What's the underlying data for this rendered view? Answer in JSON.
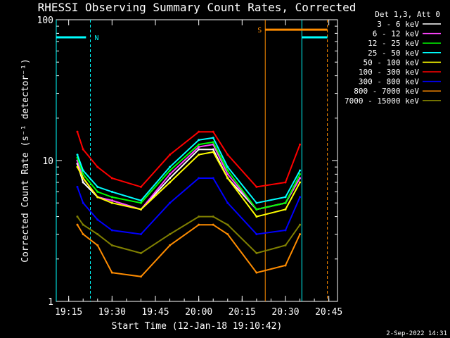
{
  "chart_data": {
    "type": "line",
    "title": "RHESSI Observing Summary Count Rates, Corrected",
    "xlabel": "Start Time (12-Jan-18 19:10:42)",
    "ylabel": "Corrected Count Rate (s⁻¹ detector⁻¹)",
    "yscale": "log",
    "ylim": [
      1,
      100
    ],
    "xlim": [
      "19:10:42",
      "20:48:00"
    ],
    "x_ticks": [
      "19:15",
      "19:30",
      "19:45",
      "20:00",
      "20:15",
      "20:30",
      "20:45"
    ],
    "y_ticks": [
      "1",
      "10",
      "100"
    ],
    "legend_title": "Det 1,3, Att 0",
    "legend_position": "right",
    "timestamp": "2-Sep-2022 14:31",
    "flag_markers": [
      {
        "label": "N",
        "color": "#00ffff",
        "line_time": "19:22:30",
        "bar_from": "19:10:42",
        "bar_to": "19:21:00",
        "value": 75
      },
      {
        "label": "S",
        "color": "#ff8c00",
        "line_time": "20:23:00",
        "bar_from": "20:23:00",
        "bar_to": "20:44:30",
        "value": 85
      },
      {
        "label": "",
        "color": "#00ffff",
        "line_time": "20:44:00",
        "bar_from": "20:35:40",
        "bar_to": "20:44:30",
        "value": 75
      }
    ],
    "boundary_lines": [
      {
        "time": "19:10:42",
        "color": "#00ffff",
        "style": "solid"
      },
      {
        "time": "19:22:30",
        "color": "#00ffff",
        "style": "dashed"
      },
      {
        "time": "20:23:00",
        "color": "#ff8c00",
        "style": "solid"
      },
      {
        "time": "20:35:40",
        "color": "#00ffff",
        "style": "solid"
      },
      {
        "time": "20:44:30",
        "color": "#ff8c00",
        "style": "dashed"
      }
    ],
    "series": [
      {
        "name": "3 - 6 keV",
        "color": "#ffffff",
        "times": [
          "19:18",
          "19:20",
          "19:25",
          "19:30",
          "19:40",
          "19:50",
          "20:00",
          "20:05",
          "20:10",
          "20:20",
          "20:30",
          "20:35"
        ],
        "values": [
          9.5,
          7,
          5.5,
          5.2,
          4.5,
          7.5,
          12,
          12,
          7.5,
          4.5,
          5,
          7.5
        ]
      },
      {
        "name": "6 - 12 keV",
        "color": "#ff44ff",
        "times": [
          "19:18",
          "19:20",
          "19:25",
          "19:30",
          "19:40",
          "19:50",
          "20:00",
          "20:05",
          "20:10",
          "20:20",
          "20:30",
          "20:35"
        ],
        "values": [
          10,
          7.5,
          5.5,
          5.2,
          4.5,
          8,
          12.5,
          13,
          8,
          4.5,
          5,
          7.5
        ]
      },
      {
        "name": "12 - 25 keV",
        "color": "#00ff00",
        "times": [
          "19:18",
          "19:20",
          "19:25",
          "19:30",
          "19:40",
          "19:50",
          "20:00",
          "20:05",
          "20:10",
          "20:20",
          "20:30",
          "20:35"
        ],
        "values": [
          10.5,
          8,
          6,
          5.5,
          5,
          8.5,
          13,
          13.5,
          8.5,
          4.5,
          5,
          8
        ]
      },
      {
        "name": "25 - 50 keV",
        "color": "#00ffff",
        "times": [
          "19:18",
          "19:20",
          "19:25",
          "19:30",
          "19:40",
          "19:50",
          "20:00",
          "20:05",
          "20:10",
          "20:20",
          "20:30",
          "20:35"
        ],
        "values": [
          11,
          8.5,
          6.5,
          6,
          5.2,
          9,
          14,
          14.5,
          9,
          5,
          5.5,
          8.5
        ]
      },
      {
        "name": "50 - 100 keV",
        "color": "#ffff00",
        "times": [
          "19:18",
          "19:20",
          "19:25",
          "19:30",
          "19:40",
          "19:50",
          "20:00",
          "20:05",
          "20:10",
          "20:20",
          "20:30",
          "20:35"
        ],
        "values": [
          9,
          7.5,
          5.5,
          5,
          4.5,
          7,
          11,
          11.5,
          7.5,
          4,
          4.5,
          7
        ]
      },
      {
        "name": "100 - 300 keV",
        "color": "#ff0000",
        "times": [
          "19:18",
          "19:20",
          "19:25",
          "19:30",
          "19:40",
          "19:50",
          "20:00",
          "20:05",
          "20:10",
          "20:20",
          "20:30",
          "20:35"
        ],
        "values": [
          16,
          12,
          9,
          7.5,
          6.5,
          11,
          16,
          16,
          11,
          6.5,
          7,
          13
        ]
      },
      {
        "name": "300 - 800 keV",
        "color": "#0000ff",
        "times": [
          "19:18",
          "19:20",
          "19:25",
          "19:30",
          "19:40",
          "19:50",
          "20:00",
          "20:05",
          "20:10",
          "20:20",
          "20:30",
          "20:35"
        ],
        "values": [
          6.5,
          5,
          3.8,
          3.2,
          3,
          5,
          7.5,
          7.5,
          5,
          3,
          3.2,
          5.5
        ]
      },
      {
        "name": "800 - 7000 keV",
        "color": "#ff8c00",
        "times": [
          "19:18",
          "19:20",
          "19:25",
          "19:30",
          "19:40",
          "19:50",
          "20:00",
          "20:05",
          "20:10",
          "20:20",
          "20:30",
          "20:35"
        ],
        "values": [
          3.5,
          3,
          2.5,
          1.6,
          1.5,
          2.5,
          3.5,
          3.5,
          3,
          1.6,
          1.8,
          3
        ]
      },
      {
        "name": "7000 - 15000 keV",
        "color": "#808000",
        "times": [
          "19:18",
          "19:20",
          "19:25",
          "19:30",
          "19:40",
          "19:50",
          "20:00",
          "20:05",
          "20:10",
          "20:20",
          "20:30",
          "20:35"
        ],
        "values": [
          4,
          3.5,
          3,
          2.5,
          2.2,
          3,
          4,
          4,
          3.5,
          2.2,
          2.5,
          3.5
        ]
      }
    ]
  }
}
